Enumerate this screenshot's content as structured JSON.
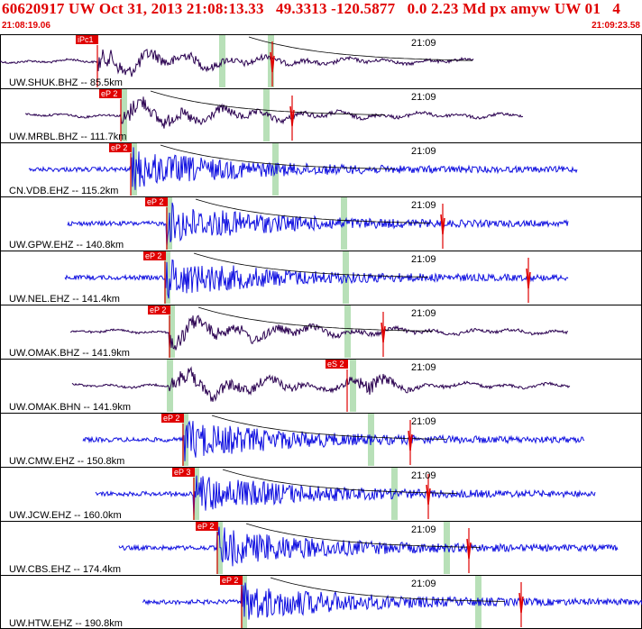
{
  "header": {
    "title": "60620917 UW Oct 31, 2013 21:08:13.33   49.3313 -120.5877   0.0 2.23 Md px amyw UW 01   4",
    "start_time": "21:08:19.06",
    "end_time": "21:09:23.58"
  },
  "chart_data": {
    "type": "line",
    "title": "60620917 UW Oct 31, 2013 21:08:13.33   49.3313 -120.5877   0.0 2.23 Md px amyw UW 01   4",
    "x_start": "21:08:19.06",
    "x_end": "21:09:23.58",
    "time_marker": "21:09",
    "colors": {
      "short_period": "#1010e0",
      "broadband": "#2a0050",
      "pick": "#e00000",
      "window": "#b8e0b8",
      "frame": "#000000"
    },
    "traces": [
      {
        "label": "UW.SHUK.BHZ -- 85.5km",
        "distance_km": 85.5,
        "pick": "iPc1",
        "color": "#2a0050"
      },
      {
        "label": "UW.MRBL.BHZ -- 111.7km",
        "distance_km": 111.7,
        "pick": "eP 2",
        "color": "#2a0050"
      },
      {
        "label": "CN.VDB.EHZ -- 115.2km",
        "distance_km": 115.2,
        "pick": "eP 2",
        "color": "#1010e0"
      },
      {
        "label": "UW.GPW.EHZ -- 140.8km",
        "distance_km": 140.8,
        "pick": "eP 2",
        "color": "#1010e0"
      },
      {
        "label": "UW.NEL.EHZ -- 141.4km",
        "distance_km": 141.4,
        "pick": "eP 2",
        "color": "#1010e0"
      },
      {
        "label": "UW.OMAK.BHZ -- 141.9km",
        "distance_km": 141.9,
        "pick": "eP 2",
        "color": "#2a0050"
      },
      {
        "label": "UW.OMAK.BHN -- 141.9km",
        "distance_km": 141.9,
        "pick": "eS 2",
        "color": "#2a0050"
      },
      {
        "label": "UW.CMW.EHZ -- 150.8km",
        "distance_km": 150.8,
        "pick": "eP 2",
        "color": "#1010e0"
      },
      {
        "label": "UW.JCW.EHZ -- 160.0km",
        "distance_km": 160.0,
        "pick": "eP 3",
        "color": "#1010e0"
      },
      {
        "label": "UW.CBS.EHZ -- 174.4km",
        "distance_km": 174.4,
        "pick": "eP 2",
        "color": "#1010e0"
      },
      {
        "label": "UW.HTW.EHZ -- 190.8km",
        "distance_km": 190.8,
        "pick": "eP 2",
        "color": "#1010e0"
      }
    ]
  }
}
